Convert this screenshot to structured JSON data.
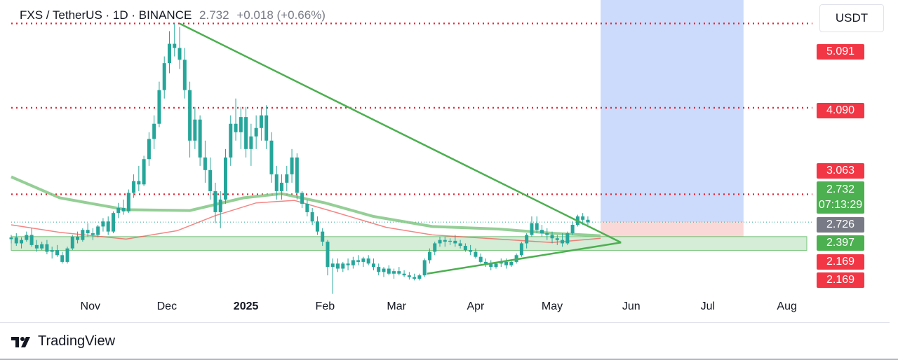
{
  "header": {
    "symbol": "FXS / TetherUS · 1D · BINANCE",
    "last": "2.732",
    "change": "+0.018 (+0.66%)"
  },
  "currency": "USDT",
  "brand": {
    "name": "TradingView",
    "icon": "tradingview-logo-icon"
  },
  "colors": {
    "up": "#26a69a",
    "down": "#ef5350",
    "candle": "#26a69a",
    "level": "#e02535",
    "trend": "#4caf50",
    "ma_slow": "#81c784",
    "ma_fast": "#ef5350",
    "target": "#bbcffa",
    "stop": "#fbd4d4",
    "zone": "#c8e6c9"
  },
  "chart_data": {
    "type": "candlestick",
    "title": "FXS / TetherUS · 1D · BINANCE",
    "x_ticks": [
      "Nov",
      "Dec",
      "2025",
      "Feb",
      "Mar",
      "Apr",
      "May",
      "Jun",
      "Jul",
      "Aug"
    ],
    "x_ticks_dates": [
      "2024-11-01",
      "2024-12-01",
      "2025-01-01",
      "2025-02-01",
      "2025-03-01",
      "2025-04-01",
      "2025-05-01",
      "2025-06-01",
      "2025-07-01",
      "2025-08-01"
    ],
    "ylim": [
      1.86,
      5.32
    ],
    "price_labels": [
      {
        "value": "5.091",
        "color": "#f23645"
      },
      {
        "value": "4.090",
        "color": "#f23645"
      },
      {
        "value": "3.063",
        "color": "#f23645"
      },
      {
        "value": "2.732",
        "sub": "07:13:29",
        "color": "#4caf50"
      },
      {
        "value": "2.726",
        "color": "#787b86"
      },
      {
        "value": "2.397",
        "color": "#4caf50"
      },
      {
        "value": "2.169",
        "color": "#f23645"
      },
      {
        "value": "2.169",
        "color": "#f23645"
      }
    ],
    "horizontal_levels": [
      5.091,
      4.09,
      3.063
    ],
    "last_price": 2.732,
    "support_zone": [
      2.397,
      2.56
    ],
    "position": {
      "start": "2025-05-20",
      "end": "2025-07-15",
      "entry": 2.732,
      "target": 5.55,
      "stop": 2.56
    },
    "triangle": {
      "upper": [
        [
          "2024-12-06",
          5.09
        ],
        [
          "2025-05-28",
          2.49
        ]
      ],
      "lower": [
        [
          "2025-03-13",
          2.12
        ],
        [
          "2025-05-28",
          2.49
        ]
      ]
    },
    "ma_slow": [
      [
        "2024-10-01",
        3.27
      ],
      [
        "2024-10-20",
        3.02
      ],
      [
        "2024-11-15",
        2.88
      ],
      [
        "2024-12-10",
        2.87
      ],
      [
        "2024-12-31",
        3.02
      ],
      [
        "2025-01-15",
        3.07
      ],
      [
        "2025-02-01",
        2.96
      ],
      [
        "2025-02-20",
        2.8
      ],
      [
        "2025-03-15",
        2.68
      ],
      [
        "2025-04-10",
        2.65
      ],
      [
        "2025-05-01",
        2.6
      ],
      [
        "2025-05-20",
        2.57
      ]
    ],
    "ma_fast": [
      [
        "2024-10-01",
        2.7
      ],
      [
        "2024-10-20",
        2.61
      ],
      [
        "2024-11-15",
        2.53
      ],
      [
        "2024-12-05",
        2.63
      ],
      [
        "2024-12-20",
        2.81
      ],
      [
        "2025-01-05",
        2.96
      ],
      [
        "2025-01-20",
        2.99
      ],
      [
        "2025-02-05",
        2.85
      ],
      [
        "2025-02-25",
        2.67
      ],
      [
        "2025-03-15",
        2.58
      ],
      [
        "2025-04-10",
        2.53
      ],
      [
        "2025-05-01",
        2.49
      ],
      [
        "2025-05-20",
        2.54
      ]
    ],
    "ohlc": [
      [
        "2024-10-01",
        2.53,
        2.58,
        2.48,
        2.55
      ],
      [
        "2024-10-03",
        2.55,
        2.6,
        2.45,
        2.48
      ],
      [
        "2024-10-05",
        2.48,
        2.55,
        2.42,
        2.52
      ],
      [
        "2024-10-07",
        2.52,
        2.62,
        2.5,
        2.58
      ],
      [
        "2024-10-09",
        2.58,
        2.66,
        2.44,
        2.46
      ],
      [
        "2024-10-11",
        2.46,
        2.52,
        2.38,
        2.42
      ],
      [
        "2024-10-13",
        2.42,
        2.5,
        2.4,
        2.47
      ],
      [
        "2024-10-15",
        2.47,
        2.52,
        2.35,
        2.38
      ],
      [
        "2024-10-17",
        2.38,
        2.44,
        2.3,
        2.4
      ],
      [
        "2024-10-19",
        2.4,
        2.46,
        2.32,
        2.34
      ],
      [
        "2024-10-21",
        2.34,
        2.38,
        2.24,
        2.26
      ],
      [
        "2024-10-23",
        2.26,
        2.44,
        2.24,
        2.42
      ],
      [
        "2024-10-25",
        2.42,
        2.58,
        2.4,
        2.56
      ],
      [
        "2024-10-27",
        2.56,
        2.62,
        2.48,
        2.52
      ],
      [
        "2024-10-29",
        2.52,
        2.66,
        2.5,
        2.64
      ],
      [
        "2024-10-31",
        2.64,
        2.72,
        2.56,
        2.6
      ],
      [
        "2024-11-02",
        2.6,
        2.66,
        2.52,
        2.58
      ],
      [
        "2024-11-04",
        2.58,
        2.7,
        2.55,
        2.68
      ],
      [
        "2024-11-06",
        2.68,
        2.78,
        2.62,
        2.74
      ],
      [
        "2024-11-08",
        2.74,
        2.8,
        2.58,
        2.62
      ],
      [
        "2024-11-10",
        2.62,
        2.86,
        2.6,
        2.84
      ],
      [
        "2024-11-12",
        2.84,
        2.96,
        2.78,
        2.9
      ],
      [
        "2024-11-14",
        2.9,
        3.0,
        2.82,
        2.86
      ],
      [
        "2024-11-16",
        2.86,
        3.12,
        2.84,
        3.08
      ],
      [
        "2024-11-18",
        3.08,
        3.3,
        3.02,
        3.22
      ],
      [
        "2024-11-20",
        3.22,
        3.4,
        3.1,
        3.18
      ],
      [
        "2024-11-22",
        3.18,
        3.52,
        3.16,
        3.48
      ],
      [
        "2024-11-24",
        3.48,
        3.8,
        3.4,
        3.72
      ],
      [
        "2024-11-26",
        3.72,
        4.0,
        3.6,
        3.9
      ],
      [
        "2024-11-28",
        3.9,
        4.4,
        3.86,
        4.3
      ],
      [
        "2024-11-30",
        4.3,
        4.7,
        4.2,
        4.62
      ],
      [
        "2024-12-02",
        4.62,
        5.0,
        4.5,
        4.85
      ],
      [
        "2024-12-04",
        4.85,
        5.09,
        4.7,
        4.8
      ],
      [
        "2024-12-06",
        4.8,
        5.05,
        4.55,
        4.66
      ],
      [
        "2024-12-08",
        4.66,
        4.8,
        4.2,
        4.3
      ],
      [
        "2024-12-10",
        4.3,
        4.4,
        3.5,
        3.7
      ],
      [
        "2024-12-12",
        3.7,
        4.1,
        3.6,
        3.95
      ],
      [
        "2024-12-14",
        3.95,
        4.0,
        3.4,
        3.5
      ],
      [
        "2024-12-16",
        3.5,
        3.7,
        3.2,
        3.35
      ],
      [
        "2024-12-18",
        3.35,
        3.5,
        3.0,
        3.1
      ],
      [
        "2024-12-20",
        3.1,
        3.2,
        2.72,
        2.85
      ],
      [
        "2024-12-22",
        2.85,
        3.1,
        2.66,
        3.0
      ],
      [
        "2024-12-24",
        3.0,
        3.6,
        2.95,
        3.5
      ],
      [
        "2024-12-26",
        3.5,
        4.0,
        3.4,
        3.9
      ],
      [
        "2024-12-28",
        3.9,
        4.2,
        3.7,
        3.8
      ],
      [
        "2024-12-30",
        3.8,
        4.1,
        3.6,
        3.98
      ],
      [
        "2025-01-01",
        3.98,
        4.1,
        3.5,
        3.6
      ],
      [
        "2025-01-03",
        3.6,
        3.9,
        3.4,
        3.75
      ],
      [
        "2025-01-05",
        3.75,
        4.0,
        3.6,
        3.85
      ],
      [
        "2025-01-07",
        3.85,
        4.1,
        3.7,
        4.0
      ],
      [
        "2025-01-09",
        4.0,
        4.12,
        3.6,
        3.7
      ],
      [
        "2025-01-11",
        3.7,
        3.8,
        3.2,
        3.3
      ],
      [
        "2025-01-13",
        3.3,
        3.4,
        3.0,
        3.1
      ],
      [
        "2025-01-15",
        3.1,
        3.3,
        3.0,
        3.2
      ],
      [
        "2025-01-17",
        3.2,
        3.4,
        3.1,
        3.3
      ],
      [
        "2025-01-19",
        3.3,
        3.6,
        3.2,
        3.5
      ],
      [
        "2025-01-21",
        3.5,
        3.55,
        3.0,
        3.08
      ],
      [
        "2025-01-23",
        3.08,
        3.1,
        2.9,
        2.95
      ],
      [
        "2025-01-25",
        2.95,
        3.0,
        2.8,
        2.85
      ],
      [
        "2025-01-27",
        2.85,
        2.9,
        2.7,
        2.74
      ],
      [
        "2025-01-29",
        2.74,
        2.8,
        2.58,
        2.62
      ],
      [
        "2025-01-31",
        2.62,
        2.66,
        2.45,
        2.5
      ],
      [
        "2025-02-02",
        2.5,
        2.52,
        2.1,
        2.2
      ],
      [
        "2025-02-04",
        2.2,
        2.3,
        1.88,
        2.24
      ],
      [
        "2025-02-06",
        2.24,
        2.3,
        2.14,
        2.18
      ],
      [
        "2025-02-08",
        2.18,
        2.26,
        2.14,
        2.24
      ],
      [
        "2025-02-10",
        2.24,
        2.3,
        2.16,
        2.22
      ],
      [
        "2025-02-12",
        2.22,
        2.32,
        2.18,
        2.28
      ],
      [
        "2025-02-14",
        2.28,
        2.34,
        2.22,
        2.26
      ],
      [
        "2025-02-16",
        2.26,
        2.32,
        2.2,
        2.3
      ],
      [
        "2025-02-18",
        2.3,
        2.34,
        2.22,
        2.24
      ],
      [
        "2025-02-20",
        2.24,
        2.3,
        2.16,
        2.2
      ],
      [
        "2025-02-22",
        2.2,
        2.24,
        2.1,
        2.14
      ],
      [
        "2025-02-24",
        2.14,
        2.2,
        2.08,
        2.18
      ],
      [
        "2025-02-26",
        2.18,
        2.22,
        2.1,
        2.12
      ],
      [
        "2025-02-28",
        2.12,
        2.18,
        2.06,
        2.15
      ],
      [
        "2025-03-02",
        2.15,
        2.2,
        2.1,
        2.12
      ],
      [
        "2025-03-04",
        2.12,
        2.16,
        2.08,
        2.1
      ],
      [
        "2025-03-06",
        2.1,
        2.14,
        2.05,
        2.08
      ],
      [
        "2025-03-08",
        2.08,
        2.12,
        2.04,
        2.06
      ],
      [
        "2025-03-10",
        2.06,
        2.12,
        2.04,
        2.1
      ],
      [
        "2025-03-12",
        2.1,
        2.3,
        2.08,
        2.28
      ],
      [
        "2025-03-14",
        2.28,
        2.42,
        2.24,
        2.38
      ],
      [
        "2025-03-16",
        2.38,
        2.5,
        2.34,
        2.48
      ],
      [
        "2025-03-18",
        2.48,
        2.56,
        2.44,
        2.52
      ],
      [
        "2025-03-20",
        2.52,
        2.56,
        2.44,
        2.5
      ],
      [
        "2025-03-22",
        2.5,
        2.54,
        2.46,
        2.51
      ],
      [
        "2025-03-24",
        2.51,
        2.58,
        2.44,
        2.48
      ],
      [
        "2025-03-26",
        2.48,
        2.52,
        2.42,
        2.45
      ],
      [
        "2025-03-28",
        2.45,
        2.48,
        2.38,
        2.4
      ],
      [
        "2025-03-30",
        2.4,
        2.46,
        2.34,
        2.38
      ],
      [
        "2025-04-01",
        2.38,
        2.42,
        2.3,
        2.32
      ],
      [
        "2025-04-03",
        2.32,
        2.36,
        2.24,
        2.26
      ],
      [
        "2025-04-05",
        2.26,
        2.3,
        2.2,
        2.24
      ],
      [
        "2025-04-07",
        2.24,
        2.28,
        2.16,
        2.2
      ],
      [
        "2025-04-09",
        2.2,
        2.26,
        2.18,
        2.24
      ],
      [
        "2025-04-11",
        2.24,
        2.3,
        2.2,
        2.26
      ],
      [
        "2025-04-13",
        2.26,
        2.3,
        2.18,
        2.22
      ],
      [
        "2025-04-15",
        2.22,
        2.28,
        2.2,
        2.26
      ],
      [
        "2025-04-17",
        2.26,
        2.36,
        2.24,
        2.34
      ],
      [
        "2025-04-19",
        2.34,
        2.5,
        2.32,
        2.48
      ],
      [
        "2025-04-21",
        2.48,
        2.6,
        2.42,
        2.58
      ],
      [
        "2025-04-23",
        2.58,
        2.8,
        2.56,
        2.72
      ],
      [
        "2025-04-25",
        2.72,
        2.8,
        2.6,
        2.64
      ],
      [
        "2025-04-27",
        2.64,
        2.7,
        2.56,
        2.6
      ],
      [
        "2025-04-29",
        2.6,
        2.66,
        2.52,
        2.58
      ],
      [
        "2025-05-01",
        2.58,
        2.62,
        2.48,
        2.54
      ],
      [
        "2025-05-03",
        2.54,
        2.58,
        2.46,
        2.52
      ],
      [
        "2025-05-05",
        2.52,
        2.6,
        2.44,
        2.48
      ],
      [
        "2025-05-07",
        2.48,
        2.62,
        2.46,
        2.6
      ],
      [
        "2025-05-09",
        2.6,
        2.74,
        2.58,
        2.7
      ],
      [
        "2025-05-11",
        2.7,
        2.82,
        2.68,
        2.8
      ],
      [
        "2025-05-13",
        2.8,
        2.84,
        2.7,
        2.76
      ],
      [
        "2025-05-15",
        2.76,
        2.8,
        2.7,
        2.73
      ]
    ]
  }
}
